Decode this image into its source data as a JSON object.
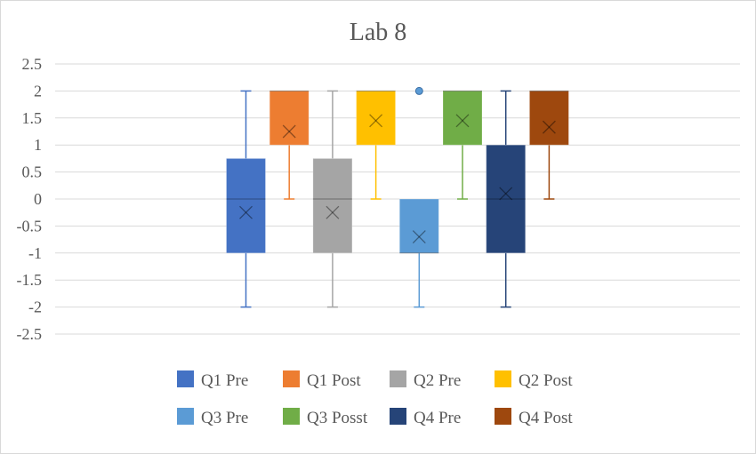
{
  "chart_data": {
    "type": "boxplot",
    "title": "Lab 8",
    "xlabel": "",
    "ylabel": "",
    "ylim": [
      -2.5,
      2.5
    ],
    "yticks": [
      2.5,
      2,
      1.5,
      1,
      0.5,
      0,
      -0.5,
      -1,
      -1.5,
      -2,
      -2.5
    ],
    "ytick_labels": [
      "2.5",
      "2",
      "1.5",
      "1",
      "0.5",
      "0",
      "-0.5",
      "-1",
      "-1.5",
      "-2",
      "-2.5"
    ],
    "grid": true,
    "legend_position": "bottom",
    "series": [
      {
        "name": "Q1 Pre",
        "color": "#4472c4",
        "min": -2,
        "q1": -1,
        "median": 0,
        "q3": 0.75,
        "max": 2,
        "mean": -0.25,
        "outliers": []
      },
      {
        "name": "Q1 Post",
        "color": "#ed7d31",
        "min": 0,
        "q1": 1,
        "median": 2,
        "q3": 2,
        "max": 2,
        "mean": 1.25,
        "outliers": []
      },
      {
        "name": "Q2 Pre",
        "color": "#a5a5a5",
        "min": -2,
        "q1": -1,
        "median": 0,
        "q3": 0.75,
        "max": 2,
        "mean": -0.25,
        "outliers": []
      },
      {
        "name": "Q2 Post",
        "color": "#ffc000",
        "min": 0,
        "q1": 1,
        "median": 2,
        "q3": 2,
        "max": 2,
        "mean": 1.45,
        "outliers": []
      },
      {
        "name": "Q3 Pre",
        "color": "#5b9bd5",
        "min": -2,
        "q1": -1,
        "median": -1,
        "q3": 0,
        "max": 0,
        "mean": -0.7,
        "outliers": [
          2
        ]
      },
      {
        "name": "Q3 Posst",
        "color": "#70ad47",
        "min": 0,
        "q1": 1,
        "median": 2,
        "q3": 2,
        "max": 2,
        "mean": 1.45,
        "outliers": []
      },
      {
        "name": "Q4 Pre",
        "color": "#264478",
        "min": -2,
        "q1": -1,
        "median": 0,
        "q3": 1,
        "max": 2,
        "mean": 0.1,
        "outliers": []
      },
      {
        "name": "Q4 Post",
        "color": "#9e480e",
        "min": 0,
        "q1": 1,
        "median": 2,
        "q3": 2,
        "max": 2,
        "mean": 1.33,
        "outliers": []
      }
    ]
  }
}
